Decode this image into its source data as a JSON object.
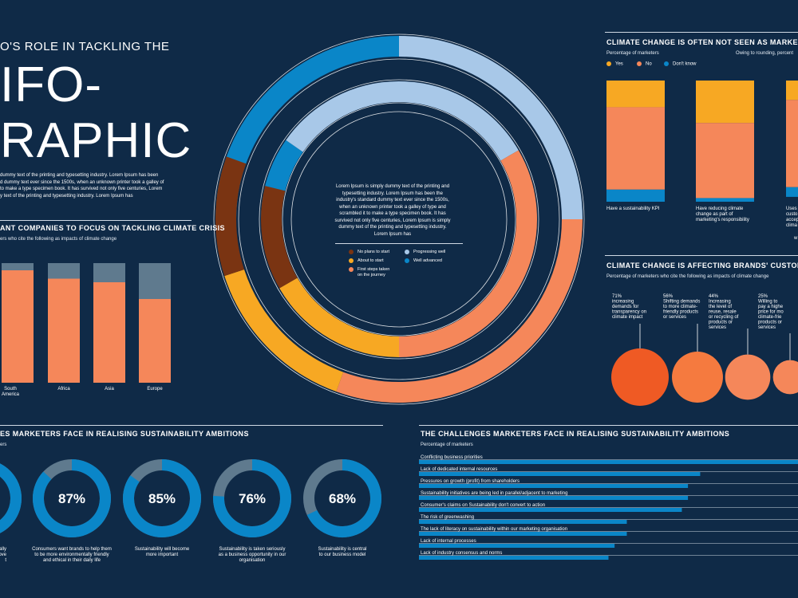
{
  "header": {
    "subtitle": "O'S ROLE IN TACKLING THE",
    "title_line1": "IFO-",
    "title_line2": "RAPHIC",
    "intro": "dummy text of the printing and typesetting industry. Lorem Ipsum has been\nd dummy text ever since the 1500s, when an unknown printer took a galley of\nto make a type specimen book. It has survived not only five centuries, Lorem\ny text of the printing and typesetting industry. Lorem Ipsum has"
  },
  "colors": {
    "bg": "#0f2a47",
    "orange": "#f5875a",
    "light_blue": "#a8c8e8",
    "blue": "#0a86c8",
    "yellow": "#f7a823",
    "brown": "#7a3412",
    "slate": "#5f7a8e",
    "deep_orange": "#ef5a24"
  },
  "center": {
    "text": "Lorem Ipsum is simply dummy text of the printing and\ntypesetting industry. Lorem Ipsum has been the\nindustry's standard dummy text ever since the 1500s,\nwhen an unknown printer took a galley of type and\nscrambled it to make a type specimen book. It has\nsurvived not only five centuries, Lorem Ipsum is simply\ndummy text of the printing and typesetting industry.\nLorem Ipsum has",
    "legend": [
      {
        "label": "No plans to start",
        "color": "#7a3412"
      },
      {
        "label": "Progressing well",
        "color": "#a8c8e8"
      },
      {
        "label": "About to start",
        "color": "#f7a823"
      },
      {
        "label": "Well advanced",
        "color": "#0a86c8"
      },
      {
        "label": "First steps taken\non the journey",
        "color": "#f5875a"
      }
    ]
  },
  "sections": {
    "focus_title": "ANT COMPANIES TO FOCUS ON TACKLING CLIMATE CRISIS",
    "focus_sub": "ers who cite the following as impacts of climate change",
    "kpi_title": "CLIMATE CHANGE IS OFTEN NOT SEEN AS MARKETING'S R",
    "kpi_sub": "Percentage of marketers",
    "kpi_note": "Owing to rounding, percent",
    "kpi_legend": [
      {
        "label": "Yes",
        "color": "#f7a823"
      },
      {
        "label": "No",
        "color": "#f5875a"
      },
      {
        "label": "Don't know",
        "color": "#0a86c8"
      }
    ],
    "customers_title": "CLIMATE CHANGE IS AFFECTING BRANDS' CUSTOMERS AN",
    "customers_sub": "Percentage of marketers who cite the following as impacts of climate change",
    "donut_title": "ES MARKETERS FACE IN REALISING SUSTAINABILITY AMBITIONS",
    "donut_sub": "ers",
    "challenges_title": "THE CHALLENGES MARKETERS FACE IN REALISING SUSTAINABILITY AMBITIONS",
    "challenges_sub": "Percentage of marketers"
  },
  "chart_data": [
    {
      "type": "radial-bar",
      "series": [
        {
          "color": "#0a86c8",
          "start": 0,
          "end": 0.27
        },
        {
          "color": "#a8c8e8",
          "start": 0.27,
          "end": 0.5
        },
        {
          "color": "#f5875a",
          "start": 0.5,
          "end": 0.81
        },
        {
          "color": "#f7a823",
          "start": 0.81,
          "end": 0.96
        },
        {
          "color": "#7a3412",
          "start": 0.96,
          "end": 1.12
        }
      ],
      "rings": [
        {
          "segments": [
            [
              "#0a86c8",
              -90,
              0
            ],
            [
              "#a8c8e8",
              0,
              90
            ],
            [
              "#f5875a",
              90,
              200
            ],
            [
              "#f7a823",
              200,
              252
            ],
            [
              "#7a3412",
              252,
              290
            ]
          ]
        },
        {
          "segments": [
            [
              "#0a86c8",
              -90,
              -55
            ],
            [
              "#a8c8e8",
              -55,
              60
            ],
            [
              "#f5875a",
              60,
              180
            ],
            [
              "#f7a823",
              180,
              240
            ],
            [
              "#7a3412",
              240,
              284
            ]
          ]
        }
      ]
    },
    {
      "type": "bar",
      "categories": [
        "South\nAmerica",
        "Africa",
        "Asia",
        "Europe"
      ],
      "series": [
        {
          "values": [
            94,
            87,
            84,
            70
          ]
        },
        {
          "values": [
            6,
            13,
            16,
            30
          ]
        }
      ],
      "ylim": [
        0,
        100
      ]
    },
    {
      "type": "bar",
      "categories": [
        "Have a sustainability KPI",
        "Have reducing climate\nchange as part of\nmarketing's responsibility",
        "Uses\ncusto\naccep\nclima"
      ],
      "series": [
        {
          "name": "Yes",
          "values": [
            22,
            35,
            16
          ]
        },
        {
          "name": "No",
          "values": [
            68,
            62,
            72
          ]
        },
        {
          "name": "Don't know",
          "values": [
            10,
            3,
            8
          ]
        }
      ],
      "extra_label": "w",
      "ylim": [
        0,
        100
      ]
    },
    {
      "type": "bubble",
      "items": [
        {
          "pct": "71%",
          "text": "increasing\ndemands for\ntransparency on\nclimate impact",
          "value": 71,
          "color": "#ef5a24"
        },
        {
          "pct": "56%",
          "text": "Shifting demands\nto more climate-\nfriendly products\nor services",
          "value": 56,
          "color": "#f57a3f"
        },
        {
          "pct": "44%",
          "text": "Increasing\nthe level of\nreuse, resale\nor recycling of\nproducts or\nservices",
          "value": 44,
          "color": "#f5875a"
        },
        {
          "pct": "25%",
          "text": "Willing to\npay a highe\nprice for mo\nclimate-frie\nproducts or\nservices",
          "value": 25,
          "color": "#f5875a"
        }
      ]
    },
    {
      "type": "donut",
      "items": [
        {
          "label": "",
          "value": 90,
          "caption": "ntally\nprove\nt"
        },
        {
          "label": "87%",
          "value": 87,
          "caption": "Consumers want brands to help them\nto be more environmentally friendly\nand ethical in their daily life"
        },
        {
          "label": "85%",
          "value": 85,
          "caption": "Sustainability will become\nmore important"
        },
        {
          "label": "76%",
          "value": 76,
          "caption": "Sustainability is taken seriously\nas a business opportunity in our\norganisation"
        },
        {
          "label": "68%",
          "value": 68,
          "caption": "Sustainability is central\nto our business model"
        }
      ]
    },
    {
      "type": "bar",
      "orientation": "horizontal",
      "categories": [
        "Conflicting business priorities",
        "Lack of dedicated internal resources",
        "Pressures on growth (profit) from shareholders",
        "Sustainability initiatives are being led in parallel/adjacent to marketing",
        "Consumer's claims on Sustainability don't convert to action",
        "The risk of greenwashing",
        "The lack of literacy on sustainability within our marketing organisation",
        "Lack of internal processes",
        "Lack of industry consensus and norms"
      ],
      "values": [
        62,
        46,
        44,
        44,
        43,
        34,
        34,
        32,
        31
      ],
      "xlim": [
        0,
        62
      ]
    }
  ]
}
